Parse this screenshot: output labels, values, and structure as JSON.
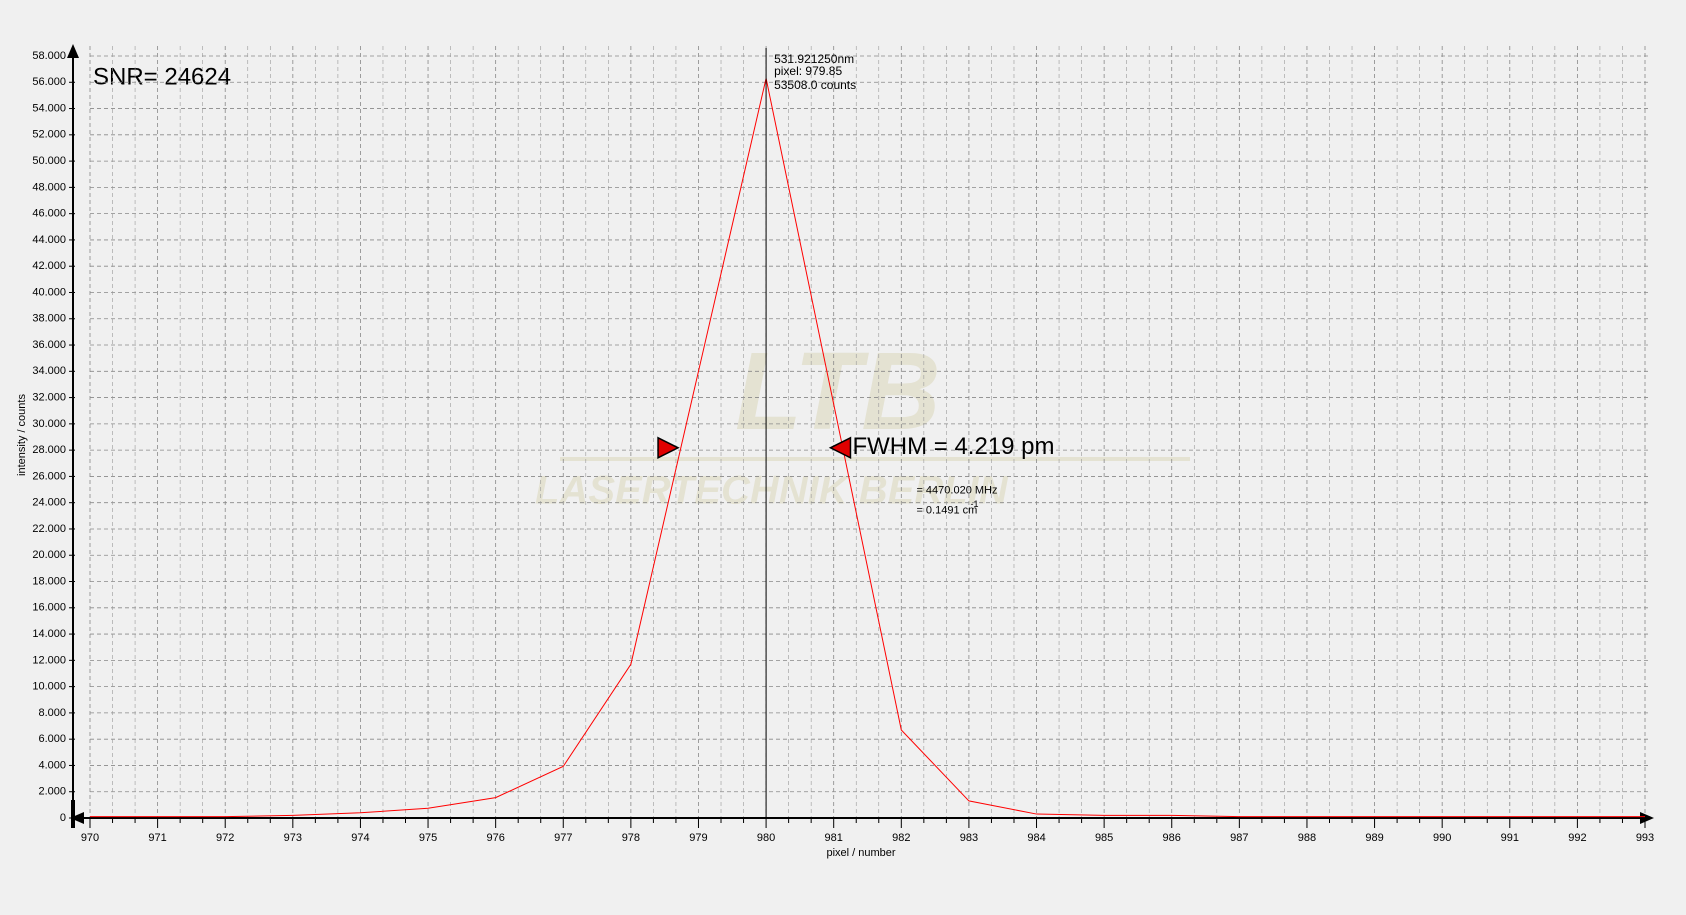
{
  "chart_data": {
    "type": "line",
    "x_label": "pixel / number",
    "y_label": "intensity / counts",
    "x": [
      970,
      971,
      972,
      973,
      974,
      975,
      976,
      977,
      978,
      979,
      980,
      981,
      982,
      983,
      984,
      985,
      986,
      987,
      988,
      989,
      990,
      991,
      992,
      993
    ],
    "values": [
      100,
      100,
      100,
      200,
      400,
      740,
      1550,
      3930,
      11700,
      34000,
      56300,
      31500,
      6700,
      1300,
      300,
      200,
      200,
      100,
      100,
      100,
      100,
      100,
      100,
      100
    ],
    "color": "#ff0000",
    "xlim": [
      970,
      993
    ],
    "ylim": [
      0,
      58000
    ],
    "xticks": [
      970,
      971,
      972,
      973,
      974,
      975,
      976,
      977,
      978,
      979,
      980,
      981,
      982,
      983,
      984,
      985,
      986,
      987,
      988,
      989,
      990,
      991,
      992,
      993
    ],
    "yticks": [
      0,
      {
        "value": 2000,
        "label": "2.000"
      },
      {
        "value": 4000,
        "label": "4.000"
      },
      {
        "value": 6000,
        "label": "6.000"
      },
      {
        "value": 8000,
        "label": "8.000"
      },
      {
        "value": 10000,
        "label": "10.000"
      },
      {
        "value": 12000,
        "label": "12.000"
      },
      {
        "value": 14000,
        "label": "14.000"
      },
      {
        "value": 16000,
        "label": "16.000"
      },
      {
        "value": 18000,
        "label": "18.000"
      },
      {
        "value": 20000,
        "label": "20.000"
      },
      {
        "value": 22000,
        "label": "22.000"
      },
      {
        "value": 24000,
        "label": "24.000"
      },
      {
        "value": 26000,
        "label": "26.000"
      },
      {
        "value": 28000,
        "label": "28.000"
      },
      {
        "value": 30000,
        "label": "30.000"
      },
      {
        "value": 32000,
        "label": "32.000"
      },
      {
        "value": 34000,
        "label": "34.000"
      },
      {
        "value": 36000,
        "label": "36.000"
      },
      {
        "value": 38000,
        "label": "38.000"
      },
      {
        "value": 40000,
        "label": "40.000"
      },
      {
        "value": 42000,
        "label": "42.000"
      },
      {
        "value": 44000,
        "label": "44.000"
      },
      {
        "value": 46000,
        "label": "46.000"
      },
      {
        "value": 48000,
        "label": "48.000"
      },
      {
        "value": 50000,
        "label": "50.000"
      },
      {
        "value": 52000,
        "label": "52.000"
      },
      {
        "value": 54000,
        "label": "54.000"
      },
      {
        "value": 56000,
        "label": "56.000"
      },
      {
        "value": 58000,
        "label": "58.000"
      }
    ],
    "grid": true,
    "cursor_x": 980,
    "fwhm_markers": {
      "x": [
        978.55,
        981.1
      ],
      "y": 28180,
      "color": "#e00000"
    },
    "annotations": {
      "snr": "SNR= 24624",
      "cursor_wavelength": "531.921250nm",
      "cursor_pixel": "pixel:  979.85",
      "cursor_counts": "53508.0 counts",
      "fwhm": "FWHM = 4.219 pm",
      "fwhm_freq": "= 4470.020 MHz",
      "fwhm_wavenumber": "= 0.1491 cm",
      "fwhm_wavenumber_exp": "-1",
      "watermark_logo": "LTB",
      "watermark_name": "LASERTECHNIK BERLIN"
    }
  }
}
